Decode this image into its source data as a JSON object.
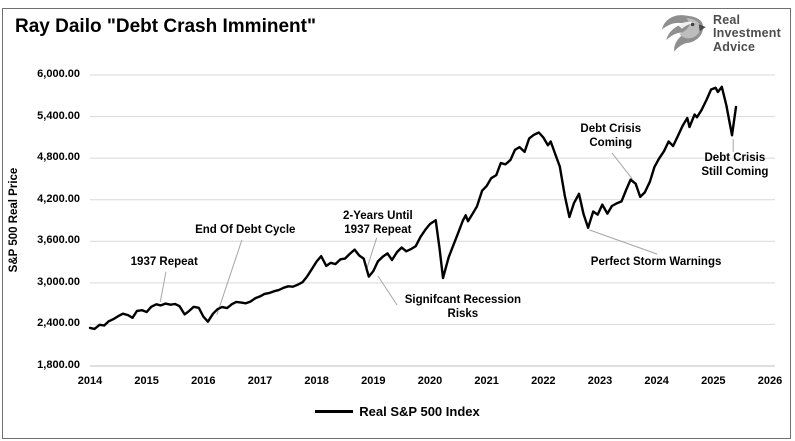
{
  "page": {
    "title": "Ray Dailo \"Debt Crash Imminent\""
  },
  "logo": {
    "name": "Real Investment Advice",
    "lines": [
      "Real",
      "Investment",
      "Advice"
    ],
    "text_color": "#4d4d4d"
  },
  "legend": {
    "label": "Real S&P 500 Index"
  },
  "chart_data": {
    "type": "line",
    "title": "Ray Dailo \"Debt Crash Imminent\"",
    "xlabel": "",
    "ylabel": "S&P 500 Real Price",
    "xlim": [
      2014,
      2026
    ],
    "ylim": [
      1800,
      6000
    ],
    "x_ticks": [
      2014,
      2015,
      2016,
      2017,
      2018,
      2019,
      2020,
      2021,
      2022,
      2023,
      2024,
      2025,
      2026
    ],
    "y_ticks": [
      6000,
      5400,
      4800,
      4200,
      3600,
      3000,
      2400,
      1800
    ],
    "y_tick_labels": [
      "6,000.00",
      "5,400.00",
      "4,800.00",
      "4,200.00",
      "3,600.00",
      "3,000.00",
      "2,400.00",
      "1,800.00"
    ],
    "grid": "horizontal",
    "gridline_color": "#d9d9d9",
    "axis_line_color": "#bfbfbf",
    "leader_color": "#a6a6a6",
    "legend_position": "bottom",
    "series": [
      {
        "name": "Real S&P 500 Index",
        "color": "#000000",
        "points": [
          [
            2014.0,
            2350
          ],
          [
            2014.08,
            2335
          ],
          [
            2014.17,
            2395
          ],
          [
            2014.25,
            2385
          ],
          [
            2014.33,
            2445
          ],
          [
            2014.42,
            2480
          ],
          [
            2014.5,
            2520
          ],
          [
            2014.58,
            2555
          ],
          [
            2014.67,
            2535
          ],
          [
            2014.75,
            2495
          ],
          [
            2014.83,
            2595
          ],
          [
            2014.92,
            2605
          ],
          [
            2015.0,
            2580
          ],
          [
            2015.08,
            2655
          ],
          [
            2015.17,
            2690
          ],
          [
            2015.25,
            2675
          ],
          [
            2015.33,
            2700
          ],
          [
            2015.42,
            2685
          ],
          [
            2015.5,
            2695
          ],
          [
            2015.58,
            2665
          ],
          [
            2015.67,
            2545
          ],
          [
            2015.75,
            2595
          ],
          [
            2015.83,
            2655
          ],
          [
            2015.92,
            2640
          ],
          [
            2016.0,
            2515
          ],
          [
            2016.08,
            2440
          ],
          [
            2016.17,
            2555
          ],
          [
            2016.25,
            2620
          ],
          [
            2016.33,
            2650
          ],
          [
            2016.42,
            2635
          ],
          [
            2016.5,
            2690
          ],
          [
            2016.58,
            2725
          ],
          [
            2016.67,
            2715
          ],
          [
            2016.75,
            2705
          ],
          [
            2016.83,
            2730
          ],
          [
            2016.92,
            2780
          ],
          [
            2017.0,
            2805
          ],
          [
            2017.08,
            2840
          ],
          [
            2017.17,
            2855
          ],
          [
            2017.25,
            2880
          ],
          [
            2017.33,
            2895
          ],
          [
            2017.42,
            2930
          ],
          [
            2017.5,
            2950
          ],
          [
            2017.58,
            2945
          ],
          [
            2017.67,
            2975
          ],
          [
            2017.75,
            3010
          ],
          [
            2017.83,
            3090
          ],
          [
            2017.92,
            3205
          ],
          [
            2018.0,
            3310
          ],
          [
            2018.08,
            3385
          ],
          [
            2018.17,
            3245
          ],
          [
            2018.25,
            3290
          ],
          [
            2018.33,
            3270
          ],
          [
            2018.42,
            3340
          ],
          [
            2018.5,
            3350
          ],
          [
            2018.58,
            3415
          ],
          [
            2018.67,
            3480
          ],
          [
            2018.75,
            3395
          ],
          [
            2018.83,
            3350
          ],
          [
            2018.92,
            3090
          ],
          [
            2019.0,
            3170
          ],
          [
            2019.08,
            3310
          ],
          [
            2019.17,
            3380
          ],
          [
            2019.25,
            3425
          ],
          [
            2019.33,
            3330
          ],
          [
            2019.42,
            3445
          ],
          [
            2019.5,
            3510
          ],
          [
            2019.58,
            3455
          ],
          [
            2019.67,
            3490
          ],
          [
            2019.75,
            3530
          ],
          [
            2019.83,
            3660
          ],
          [
            2019.92,
            3770
          ],
          [
            2020.0,
            3850
          ],
          [
            2020.1,
            3905
          ],
          [
            2020.17,
            3490
          ],
          [
            2020.23,
            3070
          ],
          [
            2020.33,
            3370
          ],
          [
            2020.42,
            3560
          ],
          [
            2020.5,
            3725
          ],
          [
            2020.58,
            3900
          ],
          [
            2020.63,
            3975
          ],
          [
            2020.67,
            3890
          ],
          [
            2020.75,
            3995
          ],
          [
            2020.83,
            4105
          ],
          [
            2020.92,
            4330
          ],
          [
            2021.0,
            4400
          ],
          [
            2021.08,
            4510
          ],
          [
            2021.17,
            4555
          ],
          [
            2021.25,
            4730
          ],
          [
            2021.33,
            4710
          ],
          [
            2021.42,
            4775
          ],
          [
            2021.5,
            4920
          ],
          [
            2021.58,
            4960
          ],
          [
            2021.67,
            4890
          ],
          [
            2021.75,
            5085
          ],
          [
            2021.83,
            5135
          ],
          [
            2021.92,
            5170
          ],
          [
            2022.0,
            5100
          ],
          [
            2022.08,
            4985
          ],
          [
            2022.13,
            5040
          ],
          [
            2022.21,
            4860
          ],
          [
            2022.29,
            4680
          ],
          [
            2022.38,
            4250
          ],
          [
            2022.46,
            3950
          ],
          [
            2022.54,
            4150
          ],
          [
            2022.63,
            4285
          ],
          [
            2022.71,
            3990
          ],
          [
            2022.79,
            3795
          ],
          [
            2022.88,
            4030
          ],
          [
            2022.96,
            3985
          ],
          [
            2023.04,
            4130
          ],
          [
            2023.13,
            4000
          ],
          [
            2023.21,
            4110
          ],
          [
            2023.29,
            4145
          ],
          [
            2023.38,
            4175
          ],
          [
            2023.46,
            4340
          ],
          [
            2023.54,
            4490
          ],
          [
            2023.63,
            4430
          ],
          [
            2023.71,
            4240
          ],
          [
            2023.79,
            4305
          ],
          [
            2023.88,
            4460
          ],
          [
            2023.96,
            4670
          ],
          [
            2024.04,
            4790
          ],
          [
            2024.13,
            4900
          ],
          [
            2024.21,
            5040
          ],
          [
            2024.29,
            4975
          ],
          [
            2024.38,
            5130
          ],
          [
            2024.46,
            5270
          ],
          [
            2024.54,
            5380
          ],
          [
            2024.58,
            5250
          ],
          [
            2024.67,
            5430
          ],
          [
            2024.71,
            5390
          ],
          [
            2024.79,
            5490
          ],
          [
            2024.88,
            5640
          ],
          [
            2024.96,
            5790
          ],
          [
            2025.04,
            5815
          ],
          [
            2025.08,
            5755
          ],
          [
            2025.15,
            5830
          ],
          [
            2025.23,
            5560
          ],
          [
            2025.33,
            5130
          ],
          [
            2025.4,
            5540
          ]
        ]
      }
    ],
    "annotations": [
      {
        "lines": [
          "1937 Repeat"
        ],
        "tx": 2015.31,
        "ty": 3300,
        "leader": [
          2015.34,
          3160,
          2015.24,
          2725
        ]
      },
      {
        "lines": [
          "End Of Debt Cycle"
        ],
        "tx": 2016.74,
        "ty": 3765,
        "leader": [
          2016.68,
          3620,
          2016.24,
          2540
        ]
      },
      {
        "lines": [
          "2-Years Until",
          "1937 Repeat"
        ],
        "tx": 2019.08,
        "ty": 3865,
        "leader": [
          2019.06,
          3650,
          2018.87,
          3170
        ]
      },
      {
        "lines": [
          "Signifcant Recession",
          "Risks"
        ],
        "tx": 2020.58,
        "ty": 2650,
        "leader": [
          2019.08,
          3100,
          2019.42,
          2680
        ]
      },
      {
        "lines": [
          "Debt Crisis",
          "Coming"
        ],
        "tx": 2023.19,
        "ty": 5120,
        "leader": [
          2023.21,
          4875,
          2023.57,
          4500
        ]
      },
      {
        "lines": [
          "Perfect Storm Warnings"
        ],
        "tx": 2023.99,
        "ty": 3300,
        "leader": [
          2022.81,
          3765,
          2024.01,
          3415
        ]
      },
      {
        "lines": [
          "Debt Crisis",
          "Still Coming"
        ],
        "tx": 2025.38,
        "ty": 4700,
        "leader": [
          2025.35,
          5075,
          2025.35,
          4890
        ]
      }
    ]
  }
}
